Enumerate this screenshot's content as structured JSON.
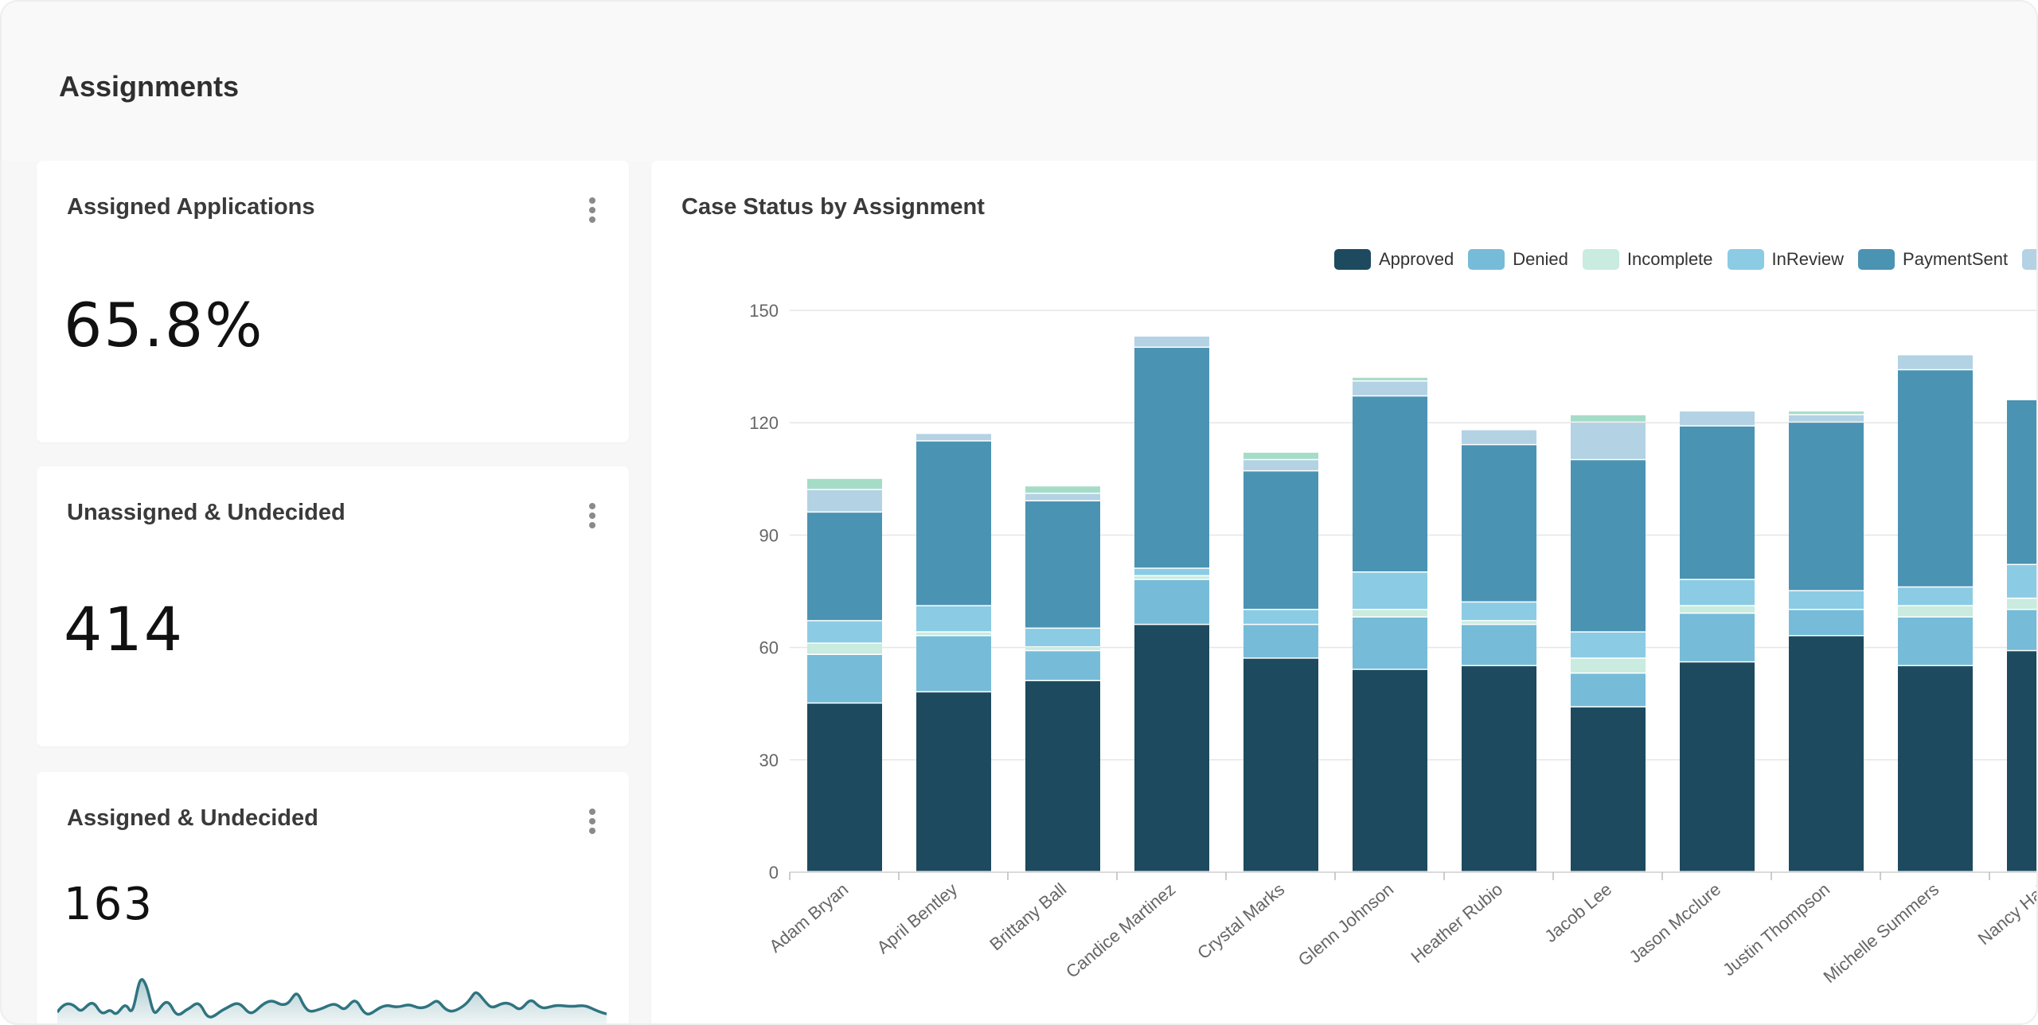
{
  "page": {
    "title": "Assignments"
  },
  "cards": [
    {
      "title": "Assigned Applications",
      "value": "65.8%"
    },
    {
      "title": "Unassigned & Undecided",
      "value": "414"
    },
    {
      "title": "Assigned & Undecided",
      "value": "163"
    }
  ],
  "icons": {
    "card_menu": "kebab-menu-icon"
  },
  "chart_card": {
    "title": "Case Status by Assignment"
  },
  "chart_data": {
    "type": "bar",
    "stacked": true,
    "title": "Case Status by Assignment",
    "xlabel": "",
    "ylabel": "",
    "ylim": [
      0,
      150
    ],
    "yticks": [
      0,
      30,
      60,
      90,
      120,
      150
    ],
    "grid": true,
    "legend_position": "top-right",
    "categories": [
      "Adam Bryan",
      "April Bentley",
      "Brittany Ball",
      "Candice Martinez",
      "Crystal Marks",
      "Glenn Johnson",
      "Heather Rubio",
      "Jacob Lee",
      "Jason Mcclure",
      "Justin Thompson",
      "Michelle Summers",
      "Nancy Hall"
    ],
    "series": [
      {
        "name": "Approved",
        "color": "#1d4a5e",
        "values": [
          45,
          48,
          51,
          66,
          57,
          54,
          55,
          44,
          56,
          63,
          55,
          59
        ]
      },
      {
        "name": "Denied",
        "color": "#76bcd8",
        "values": [
          13,
          15,
          8,
          12,
          9,
          14,
          11,
          9,
          13,
          7,
          13,
          11
        ]
      },
      {
        "name": "Incomplete",
        "color": "#c9ebe0",
        "values": [
          3,
          1,
          1,
          1,
          0,
          2,
          1,
          4,
          2,
          0,
          3,
          3
        ]
      },
      {
        "name": "InReview",
        "color": "#8ccbe4",
        "values": [
          6,
          7,
          5,
          2,
          4,
          10,
          5,
          7,
          7,
          5,
          5,
          9
        ]
      },
      {
        "name": "PaymentSent",
        "color": "#4a93b3",
        "values": [
          29,
          44,
          34,
          59,
          37,
          47,
          42,
          46,
          41,
          45,
          58,
          44
        ]
      },
      {
        "name": "",
        "color": "#b3d2e4",
        "values": [
          6,
          2,
          2,
          3,
          3,
          4,
          4,
          10,
          4,
          2,
          4,
          0
        ]
      },
      {
        "name": "",
        "color": "#a5dcc8",
        "values": [
          3,
          0,
          2,
          0,
          2,
          1,
          0,
          2,
          0,
          1,
          0,
          0
        ]
      }
    ]
  }
}
